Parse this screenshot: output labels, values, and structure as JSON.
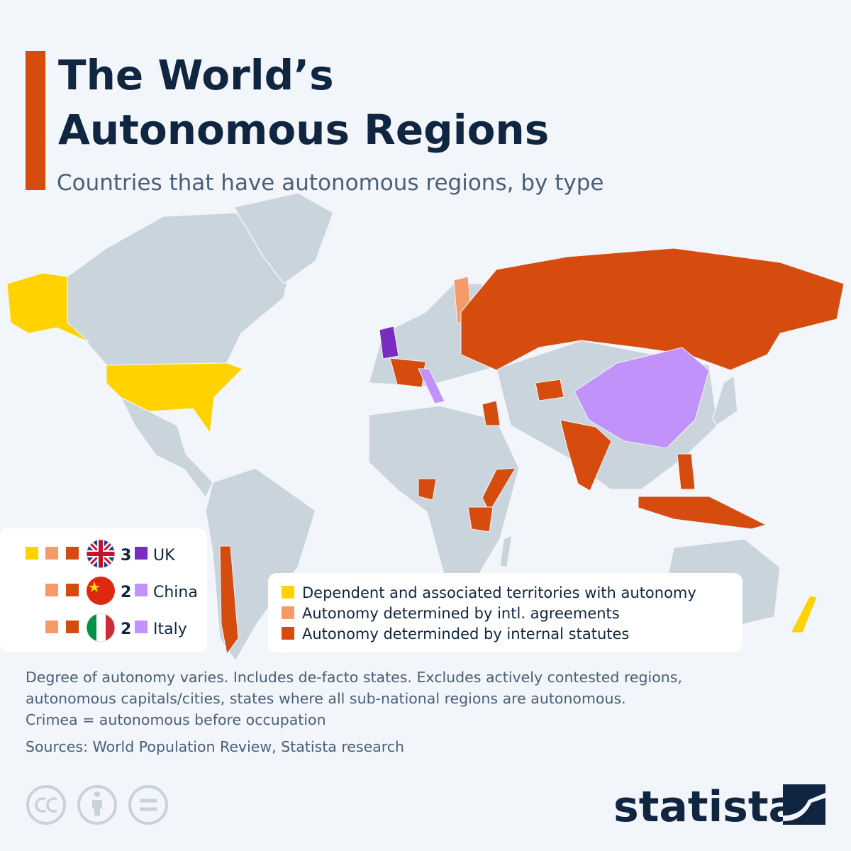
{
  "header": {
    "title_lines": [
      "The World’s",
      "Autonomous Regions"
    ],
    "subtitle": "Countries that have autonomous regions, by type"
  },
  "legend": {
    "items": [
      {
        "label": "Dependent and associated territories with autonomy",
        "color": "#ffd200"
      },
      {
        "label": "Autonomy determined by intl. agreements",
        "color": "#f79a6a"
      },
      {
        "label": "Autonomy determinded by internal statutes",
        "color": "#d64b0e"
      }
    ]
  },
  "country_counts": [
    {
      "count": 3,
      "label": "UK",
      "color": "#7a2cc0"
    },
    {
      "count": 2,
      "label": "China",
      "color": "#c292fb"
    },
    {
      "count": 2,
      "label": "Italy",
      "color": "#c292fb"
    }
  ],
  "notes": [
    "Degree of autonomy varies. Includes de-facto states. Excludes actively contested regions,",
    "autonomous capitals/cities, states where all sub-national regions are autonomous.",
    "Crimea = autonomous before occupation"
  ],
  "source": "Sources: World Population Review, Statista research",
  "brand": "statista"
}
